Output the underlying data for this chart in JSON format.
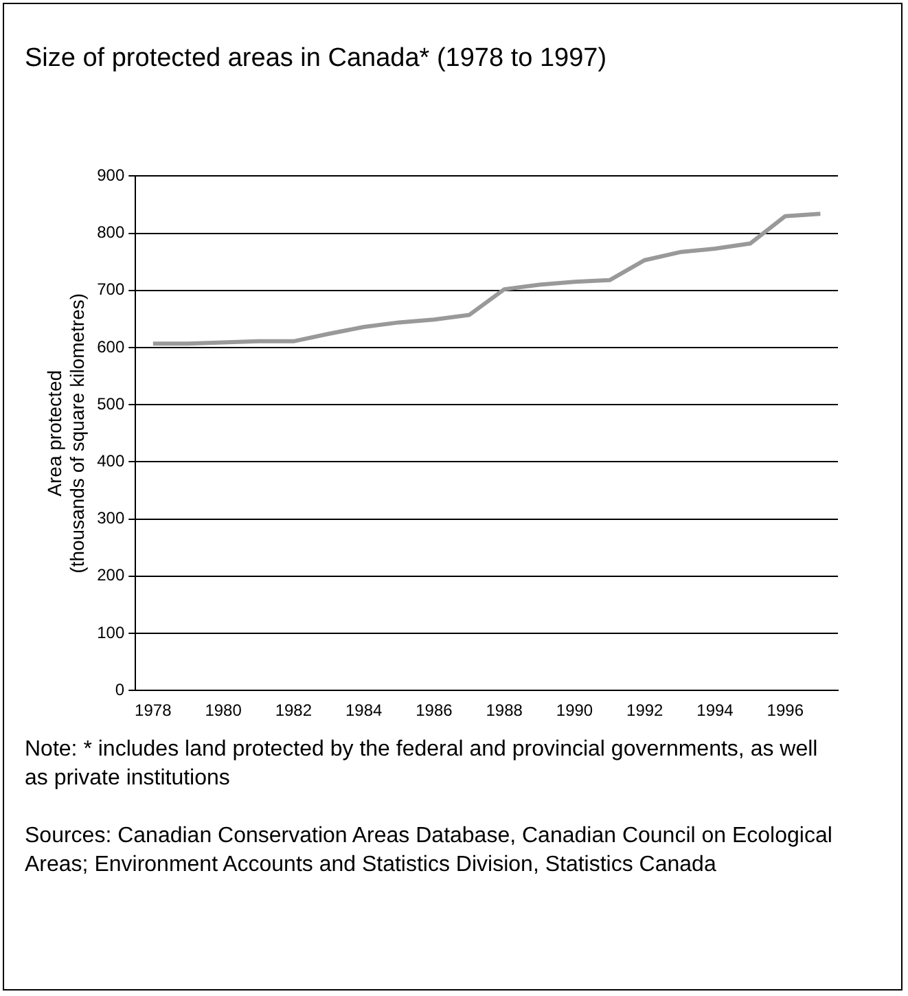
{
  "chart_data": {
    "type": "line",
    "title": "Size of protected areas in Canada* (1978 to 1997)",
    "ylabel": "Area protected\n(thousands of square kilometres)",
    "categories": [
      "1978",
      null,
      "1980",
      null,
      "1982",
      null,
      "1984",
      null,
      "1986",
      null,
      "1988",
      null,
      "1990",
      null,
      "1992",
      null,
      "1994",
      null,
      "1996",
      null
    ],
    "series": [
      {
        "color": "#999999",
        "values": [
          607,
          607,
          609,
          611,
          611,
          624,
          636,
          644,
          649,
          657,
          702,
          710,
          715,
          718,
          753,
          767,
          773,
          782,
          830,
          834
        ]
      }
    ],
    "ylim": [
      0,
      900
    ],
    "yticks": [
      0,
      100,
      200,
      300,
      400,
      500,
      600,
      700,
      800,
      900
    ],
    "grid": "y",
    "legend": false,
    "marker": "none",
    "line_style": "solid",
    "annotations": [
      "Note:  * includes land protected by the federal and provincial governments, as well as private institutions",
      "Sources: Canadian Conservation Areas Database, Canadian Council on Ecological Areas; Environment Accounts and Statistics Division, Statistics Canada"
    ]
  }
}
